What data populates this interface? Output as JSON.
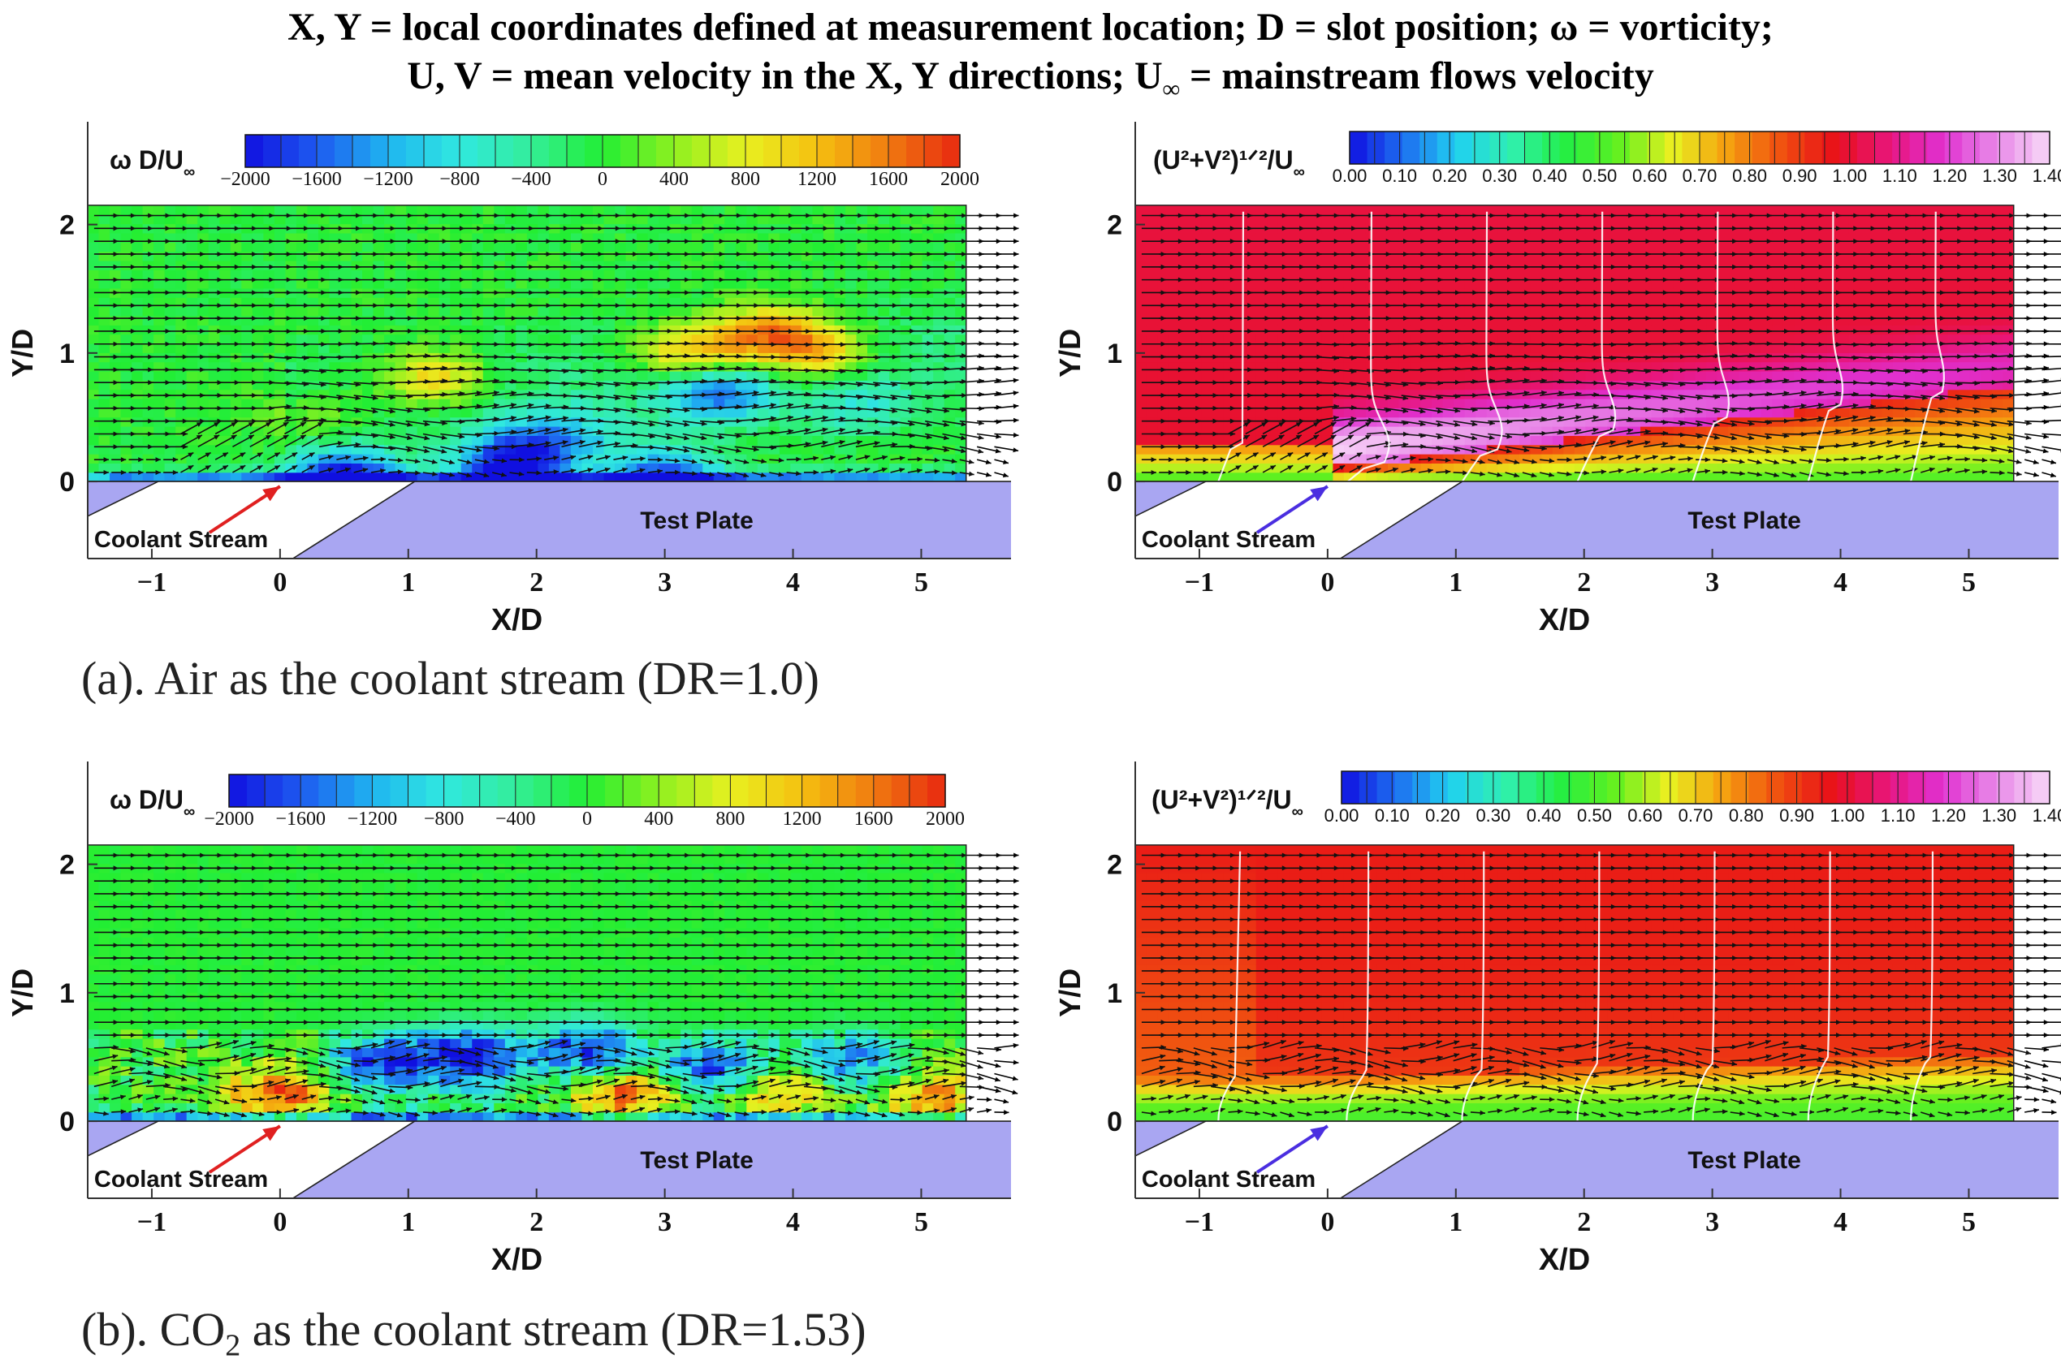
{
  "header": {
    "line1": "X, Y = local coordinates defined at measurement location;  D = slot position; ω = vorticity;",
    "line2_pre": "U, V = mean velocity in the X, Y directions;  U",
    "line2_sub": "∞",
    "line2_post": " = mainstream flows velocity"
  },
  "captions": {
    "a": "(a). Air as the coolant stream (DR=1.0)",
    "b_pre": "(b). CO",
    "b_sub": "2",
    "b_post": " as the coolant stream (DR=1.53)"
  },
  "colors": {
    "plate": "#a9a6f2",
    "coolant_arrow_vorticity": "#e02020",
    "coolant_arrow_velocity": "#4a2ee0",
    "jet_map": [
      "#1010e0",
      "#1e5af0",
      "#1fb4f0",
      "#30e8e0",
      "#33ee99",
      "#22ee33",
      "#8ef020",
      "#e8f020",
      "#f5c010",
      "#f07a10",
      "#e82810"
    ],
    "vel_map": [
      "#1010e0",
      "#1e6ef0",
      "#20d0f0",
      "#30f0b0",
      "#22ee44",
      "#60f020",
      "#e8f020",
      "#f5a010",
      "#f05010",
      "#e81018",
      "#e8157a",
      "#e030d0",
      "#e888e8",
      "#f8d8f8"
    ]
  },
  "chart_data": [
    {
      "panel": "a-vorticity",
      "type": "heatmap",
      "field": "vorticity",
      "legend_label": "ω D/U",
      "legend_sub": "∞",
      "colorbar_ticks": [
        "−2000",
        "−1600",
        "−1200",
        "−800",
        "−400",
        "0",
        "400",
        "800",
        "1200",
        "1600",
        "2000"
      ],
      "colorbar_range": [
        -2000,
        2000
      ],
      "xlabel": "X/D",
      "ylabel": "Y/D",
      "xticks": [
        "−1",
        "0",
        "1",
        "2",
        "3",
        "4",
        "5"
      ],
      "yticks": [
        "0",
        "1",
        "2"
      ],
      "xlim": [
        -1.5,
        5.7
      ],
      "ylim": [
        -0.6,
        2.8
      ],
      "field_extent": {
        "x": [
          -1.5,
          5.35
        ],
        "y": [
          0,
          2.15
        ]
      },
      "plate_label": "Test Plate",
      "coolant_label": "Coolant  Stream",
      "coolant_label_left": "Coolant",
      "coolant_label_right": "Stream",
      "features": [
        {
          "x": 0.5,
          "y": 0.05,
          "value": -1800
        },
        {
          "x": 1.8,
          "y": 0.15,
          "value": -2000
        },
        {
          "x": 0.3,
          "y": 0.5,
          "value": 600
        },
        {
          "x": 1.2,
          "y": 0.8,
          "value": 1200
        },
        {
          "x": 2.2,
          "y": 0.35,
          "value": -1000
        },
        {
          "x": 3.2,
          "y": 1.0,
          "value": 1400
        },
        {
          "x": 3.4,
          "y": 0.7,
          "value": -1400
        },
        {
          "x": 4.2,
          "y": 1.0,
          "value": 1200
        },
        {
          "x": 3.8,
          "y": 1.15,
          "value": 1500
        },
        {
          "x": 3.0,
          "y": 0.05,
          "value": -1500
        },
        {
          "x": 4.5,
          "y": 0.6,
          "value": -600
        }
      ]
    },
    {
      "panel": "a-velocity",
      "type": "heatmap",
      "field": "velocity magnitude",
      "legend_label": "(U²+V²)¹ᐟ²/U",
      "legend_sub": "∞",
      "colorbar_ticks": [
        "0.00",
        "0.10",
        "0.20",
        "0.30",
        "0.40",
        "0.50",
        "0.60",
        "0.70",
        "0.80",
        "0.90",
        "1.00",
        "1.10",
        "1.20",
        "1.30",
        "1.40"
      ],
      "colorbar_range": [
        0,
        1.4
      ],
      "xlabel": "X/D",
      "ylabel": "Y/D",
      "xticks": [
        "−1",
        "0",
        "1",
        "2",
        "3",
        "4",
        "5"
      ],
      "yticks": [
        "0",
        "1",
        "2"
      ],
      "xlim": [
        -1.5,
        5.7
      ],
      "ylim": [
        -0.6,
        2.8
      ],
      "field_extent": {
        "x": [
          -1.5,
          5.35
        ],
        "y": [
          0,
          2.15
        ]
      },
      "plate_label": "Test Plate",
      "coolant_label": "Coolant  Stream",
      "coolant_label_left": "Coolant",
      "coolant_label_right": "Stream",
      "freestream_value": 1.0,
      "near_wall_value": 0.5,
      "jet_core_value": 1.4
    },
    {
      "panel": "b-vorticity",
      "type": "heatmap",
      "field": "vorticity",
      "legend_label": "ω D/U",
      "legend_sub": "∞",
      "colorbar_ticks": [
        "−2000",
        "−1600",
        "−1200",
        "−800",
        "−400",
        "0",
        "400",
        "800",
        "1200",
        "1600",
        "2000"
      ],
      "colorbar_range": [
        -2000,
        2000
      ],
      "xlabel": "X/D",
      "ylabel": "Y/D",
      "xticks": [
        "−1",
        "0",
        "1",
        "2",
        "3",
        "4",
        "5"
      ],
      "yticks": [
        "0",
        "1",
        "2"
      ],
      "xlim": [
        -1.5,
        5.7
      ],
      "ylim": [
        -0.6,
        2.8
      ],
      "field_extent": {
        "x": [
          -1.5,
          5.35
        ],
        "y": [
          0,
          2.15
        ]
      },
      "plate_label": "Test Plate",
      "coolant_label": "Coolant  Stream",
      "coolant_label_left": "Coolant",
      "coolant_label_right": "Stream",
      "features": [
        {
          "x": 0.0,
          "y": 0.2,
          "value": 1800
        },
        {
          "x": 0.8,
          "y": 0.45,
          "value": -1800
        },
        {
          "x": 1.5,
          "y": 0.5,
          "value": -2000
        },
        {
          "x": 2.4,
          "y": 0.55,
          "value": -1800
        },
        {
          "x": 2.7,
          "y": 0.2,
          "value": 1800
        },
        {
          "x": 3.4,
          "y": 0.4,
          "value": -1900
        },
        {
          "x": 3.9,
          "y": 0.25,
          "value": 1600
        },
        {
          "x": 4.4,
          "y": 0.45,
          "value": -1500
        },
        {
          "x": 5.1,
          "y": 0.15,
          "value": 1500
        }
      ]
    },
    {
      "panel": "b-velocity",
      "type": "heatmap",
      "field": "velocity magnitude",
      "legend_label": "(U²+V²)¹ᐟ²/U",
      "legend_sub": "∞",
      "colorbar_ticks": [
        "0.00",
        "0.10",
        "0.20",
        "0.30",
        "0.40",
        "0.50",
        "0.60",
        "0.70",
        "0.80",
        "0.90",
        "1.00",
        "1.10",
        "1.20",
        "1.30",
        "1.40"
      ],
      "colorbar_range": [
        0,
        1.4
      ],
      "xlabel": "X/D",
      "ylabel": "Y/D",
      "xticks": [
        "−1",
        "0",
        "1",
        "2",
        "3",
        "4",
        "5"
      ],
      "yticks": [
        "0",
        "1",
        "2"
      ],
      "xlim": [
        -1.5,
        5.7
      ],
      "ylim": [
        -0.6,
        2.8
      ],
      "field_extent": {
        "x": [
          -1.5,
          5.35
        ],
        "y": [
          0,
          2.15
        ]
      },
      "plate_label": "Test Plate",
      "coolant_label": "Coolant  Stream",
      "coolant_label_left": "Coolant",
      "coolant_label_right": "Stream",
      "freestream_value": 0.95,
      "near_wall_value": 0.5
    }
  ]
}
